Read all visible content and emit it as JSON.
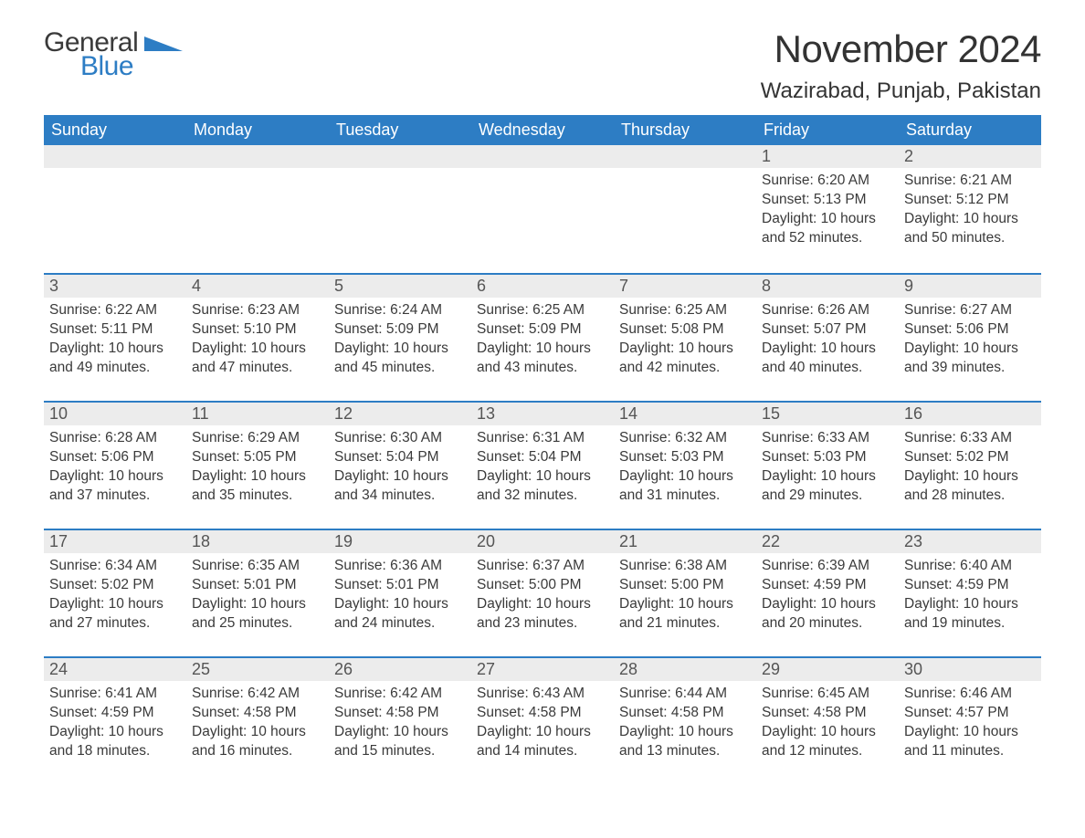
{
  "brand": {
    "part1": "General",
    "part2": "Blue",
    "logo_color": "#2d7dc4"
  },
  "title": "November 2024",
  "location": "Wazirabad, Punjab, Pakistan",
  "colors": {
    "header_bg": "#2d7dc4",
    "header_text": "#ffffff",
    "daynum_bg": "#ececec",
    "row_border": "#2d7dc4",
    "body_text": "#3a3a3a"
  },
  "day_headers": [
    "Sunday",
    "Monday",
    "Tuesday",
    "Wednesday",
    "Thursday",
    "Friday",
    "Saturday"
  ],
  "weeks": [
    [
      null,
      null,
      null,
      null,
      null,
      {
        "n": "1",
        "sr": "6:20 AM",
        "ss": "5:13 PM",
        "dl": "10 hours and 52 minutes."
      },
      {
        "n": "2",
        "sr": "6:21 AM",
        "ss": "5:12 PM",
        "dl": "10 hours and 50 minutes."
      }
    ],
    [
      {
        "n": "3",
        "sr": "6:22 AM",
        "ss": "5:11 PM",
        "dl": "10 hours and 49 minutes."
      },
      {
        "n": "4",
        "sr": "6:23 AM",
        "ss": "5:10 PM",
        "dl": "10 hours and 47 minutes."
      },
      {
        "n": "5",
        "sr": "6:24 AM",
        "ss": "5:09 PM",
        "dl": "10 hours and 45 minutes."
      },
      {
        "n": "6",
        "sr": "6:25 AM",
        "ss": "5:09 PM",
        "dl": "10 hours and 43 minutes."
      },
      {
        "n": "7",
        "sr": "6:25 AM",
        "ss": "5:08 PM",
        "dl": "10 hours and 42 minutes."
      },
      {
        "n": "8",
        "sr": "6:26 AM",
        "ss": "5:07 PM",
        "dl": "10 hours and 40 minutes."
      },
      {
        "n": "9",
        "sr": "6:27 AM",
        "ss": "5:06 PM",
        "dl": "10 hours and 39 minutes."
      }
    ],
    [
      {
        "n": "10",
        "sr": "6:28 AM",
        "ss": "5:06 PM",
        "dl": "10 hours and 37 minutes."
      },
      {
        "n": "11",
        "sr": "6:29 AM",
        "ss": "5:05 PM",
        "dl": "10 hours and 35 minutes."
      },
      {
        "n": "12",
        "sr": "6:30 AM",
        "ss": "5:04 PM",
        "dl": "10 hours and 34 minutes."
      },
      {
        "n": "13",
        "sr": "6:31 AM",
        "ss": "5:04 PM",
        "dl": "10 hours and 32 minutes."
      },
      {
        "n": "14",
        "sr": "6:32 AM",
        "ss": "5:03 PM",
        "dl": "10 hours and 31 minutes."
      },
      {
        "n": "15",
        "sr": "6:33 AM",
        "ss": "5:03 PM",
        "dl": "10 hours and 29 minutes."
      },
      {
        "n": "16",
        "sr": "6:33 AM",
        "ss": "5:02 PM",
        "dl": "10 hours and 28 minutes."
      }
    ],
    [
      {
        "n": "17",
        "sr": "6:34 AM",
        "ss": "5:02 PM",
        "dl": "10 hours and 27 minutes."
      },
      {
        "n": "18",
        "sr": "6:35 AM",
        "ss": "5:01 PM",
        "dl": "10 hours and 25 minutes."
      },
      {
        "n": "19",
        "sr": "6:36 AM",
        "ss": "5:01 PM",
        "dl": "10 hours and 24 minutes."
      },
      {
        "n": "20",
        "sr": "6:37 AM",
        "ss": "5:00 PM",
        "dl": "10 hours and 23 minutes."
      },
      {
        "n": "21",
        "sr": "6:38 AM",
        "ss": "5:00 PM",
        "dl": "10 hours and 21 minutes."
      },
      {
        "n": "22",
        "sr": "6:39 AM",
        "ss": "4:59 PM",
        "dl": "10 hours and 20 minutes."
      },
      {
        "n": "23",
        "sr": "6:40 AM",
        "ss": "4:59 PM",
        "dl": "10 hours and 19 minutes."
      }
    ],
    [
      {
        "n": "24",
        "sr": "6:41 AM",
        "ss": "4:59 PM",
        "dl": "10 hours and 18 minutes."
      },
      {
        "n": "25",
        "sr": "6:42 AM",
        "ss": "4:58 PM",
        "dl": "10 hours and 16 minutes."
      },
      {
        "n": "26",
        "sr": "6:42 AM",
        "ss": "4:58 PM",
        "dl": "10 hours and 15 minutes."
      },
      {
        "n": "27",
        "sr": "6:43 AM",
        "ss": "4:58 PM",
        "dl": "10 hours and 14 minutes."
      },
      {
        "n": "28",
        "sr": "6:44 AM",
        "ss": "4:58 PM",
        "dl": "10 hours and 13 minutes."
      },
      {
        "n": "29",
        "sr": "6:45 AM",
        "ss": "4:58 PM",
        "dl": "10 hours and 12 minutes."
      },
      {
        "n": "30",
        "sr": "6:46 AM",
        "ss": "4:57 PM",
        "dl": "10 hours and 11 minutes."
      }
    ]
  ],
  "labels": {
    "sunrise": "Sunrise: ",
    "sunset": "Sunset: ",
    "daylight": "Daylight: "
  }
}
